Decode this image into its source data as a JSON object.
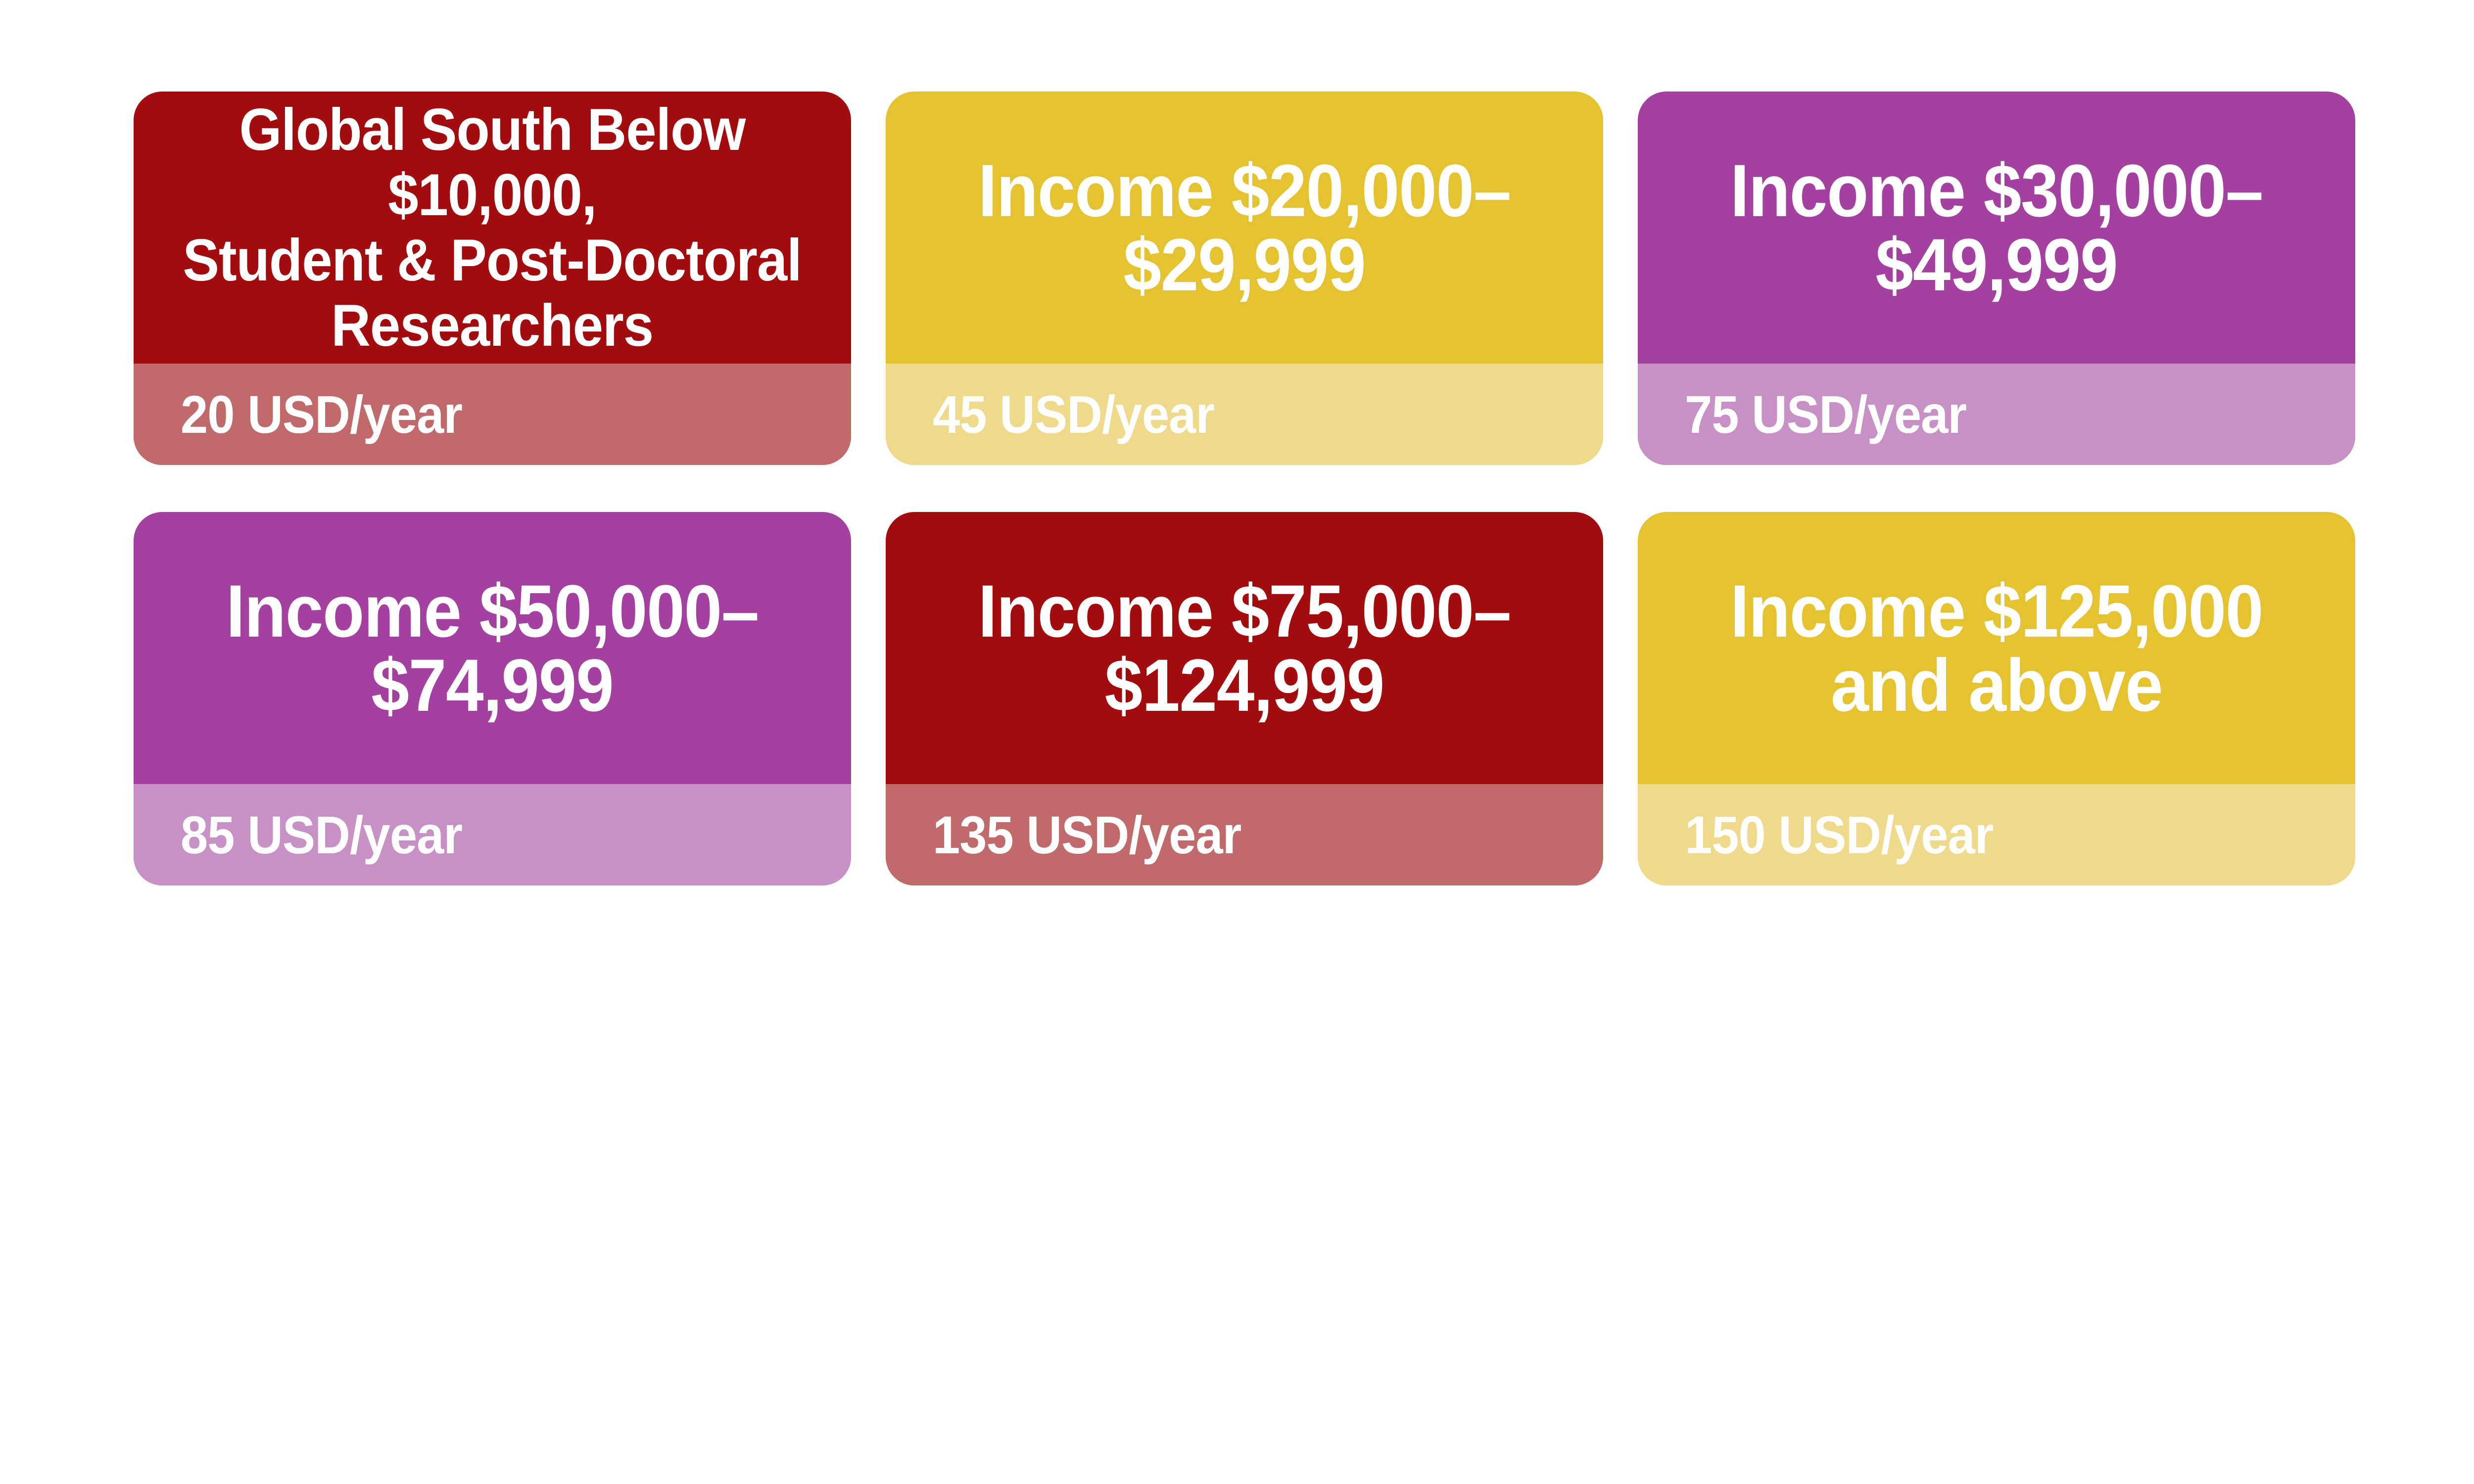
{
  "page": {
    "background_color": "#ffffff",
    "text_color": "#ffffff"
  },
  "cards": [
    {
      "title_lines": [
        "Global South Below",
        "$10,000,",
        "Student & Post-Doctoral",
        "Researchers"
      ],
      "price": "20 USD/year",
      "colors": {
        "base": "#a20c0e",
        "footer": "#c16a6b",
        "text": "#ffffff"
      }
    },
    {
      "title_lines": [
        "Income $20,000–",
        "$29,999"
      ],
      "price": "45 USD/year",
      "colors": {
        "base": "#e5c22f",
        "footer": "#efd98a",
        "text": "#ffffff"
      }
    },
    {
      "title_lines": [
        "Income $30,000–",
        "$49,999"
      ],
      "price": "75 USD/year",
      "colors": {
        "base": "#a340a0",
        "footer": "#c791c5",
        "text": "#ffffff"
      }
    },
    {
      "title_lines": [
        "Income $50,000–",
        "$74,999"
      ],
      "price": "85 USD/year",
      "colors": {
        "base": "#a340a0",
        "footer": "#c791c5",
        "text": "#ffffff"
      }
    },
    {
      "title_lines": [
        "Income $75,000–",
        "$124,999"
      ],
      "price": "135 USD/year",
      "colors": {
        "base": "#a20c0e",
        "footer": "#c16a6b",
        "text": "#ffffff"
      }
    },
    {
      "title_lines": [
        "Income $125,000",
        "and above"
      ],
      "price": "150 USD/year",
      "colors": {
        "base": "#e5c22f",
        "footer": "#efd98a",
        "text": "#ffffff"
      }
    }
  ]
}
